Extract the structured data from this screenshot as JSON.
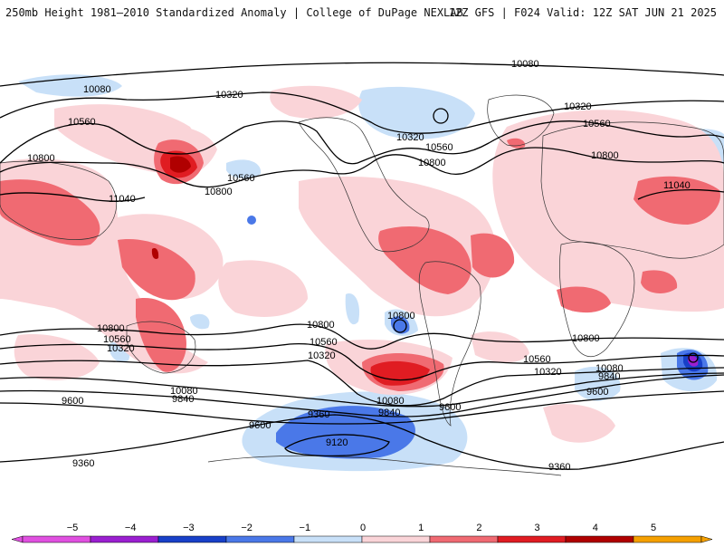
{
  "header": {
    "title": "250mb Height 1981–2010 Standardized Anomaly | College of DuPage NEXLAB",
    "valid": "12Z GFS | F024 Valid: 12Z SAT JUN 21 2025"
  },
  "colors": {
    "neg5": "#e050e0",
    "neg4": "#9a1fd0",
    "neg3": "#1840c8",
    "neg2": "#4a78e8",
    "neg1": "#c8e0f8",
    "zero": "#ffffff",
    "pos1": "#fad4d8",
    "pos2": "#f06a72",
    "pos3": "#e01c22",
    "pos4": "#b00000",
    "pos5": "#f5a000",
    "contour": "#000000",
    "coast": "#333333"
  },
  "colorbar": {
    "ticks": [
      "−5",
      "−4",
      "−3",
      "−2",
      "−1",
      "0",
      "1",
      "2",
      "3",
      "4",
      "5"
    ]
  },
  "contours": [
    {
      "label": "10080",
      "value": 10080
    },
    {
      "label": "10320",
      "value": 10320
    },
    {
      "label": "10560",
      "value": 10560
    },
    {
      "label": "10800",
      "value": 10800
    },
    {
      "label": "11040",
      "value": 11040
    },
    {
      "label": "9840",
      "value": 9840
    },
    {
      "label": "9600",
      "value": 9600
    },
    {
      "label": "9360",
      "value": 9360
    },
    {
      "label": "9120",
      "value": 9120
    }
  ]
}
